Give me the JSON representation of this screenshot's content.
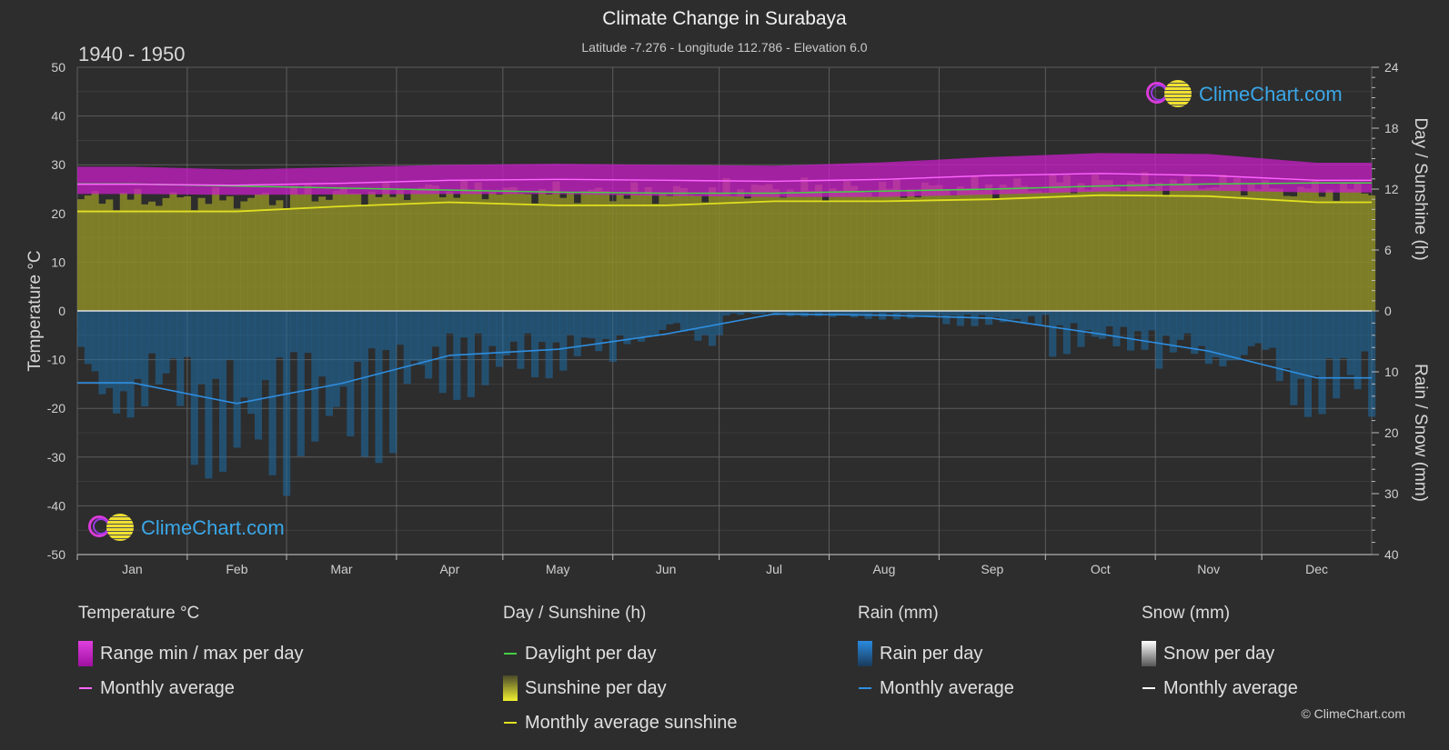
{
  "header": {
    "title": "Climate Change in Surabaya",
    "subtitle": "Latitude -7.276 - Longitude 112.786 - Elevation 6.0",
    "period": "1940 - 1950"
  },
  "brand": {
    "name": "ClimeChart.com"
  },
  "copyright": "© ClimeChart.com",
  "colors": {
    "background": "#2d2d2d",
    "temp_range": "#c81ec8",
    "temp_avg": "#ff66ff",
    "daylight": "#44d044",
    "sunshine_fill": "#8c8c28",
    "sunshine_avg": "#e0e020",
    "rain_fill": "#1e6ea8",
    "rain_avg": "#2e8ee0",
    "snow_avg": "#ffffff",
    "grid": "#606060"
  },
  "chart_data": {
    "type": "line",
    "months": [
      "Jan",
      "Feb",
      "Mar",
      "Apr",
      "May",
      "Jun",
      "Jul",
      "Aug",
      "Sep",
      "Oct",
      "Nov",
      "Dec"
    ],
    "left_axis": {
      "title": "Temperature °C",
      "ticks": [
        "50",
        "40",
        "30",
        "20",
        "10",
        "0",
        "-10",
        "-20",
        "-30",
        "-40",
        "-50"
      ],
      "range": [
        -50,
        50
      ]
    },
    "right_axis_top": {
      "title": "Day / Sunshine (h)",
      "ticks": [
        "24",
        "18",
        "12",
        "6",
        "0"
      ],
      "range": [
        0,
        24
      ]
    },
    "right_axis_bottom": {
      "title": "Rain / Snow (mm)",
      "ticks": [
        "0",
        "10",
        "20",
        "30",
        "40"
      ],
      "range": [
        0,
        40
      ]
    },
    "series": [
      {
        "name": "Temperature range min / max per day",
        "unit": "°C",
        "min": [
          24.0,
          23.8,
          23.9,
          24.0,
          24.0,
          23.6,
          23.4,
          23.4,
          23.9,
          24.5,
          24.7,
          24.3
        ],
        "max": [
          29.6,
          29.0,
          29.5,
          30.0,
          30.2,
          30.0,
          29.8,
          30.5,
          31.6,
          32.4,
          32.2,
          30.4
        ]
      },
      {
        "name": "Temperature monthly average",
        "unit": "°C",
        "values": [
          26.0,
          25.8,
          26.2,
          26.8,
          27.0,
          26.8,
          26.6,
          27.0,
          27.8,
          28.2,
          27.8,
          26.8
        ]
      },
      {
        "name": "Daylight per day",
        "unit": "h",
        "values": [
          12.5,
          12.3,
          12.1,
          11.9,
          11.7,
          11.6,
          11.6,
          11.8,
          12.0,
          12.3,
          12.5,
          12.6
        ]
      },
      {
        "name": "Monthly average sunshine",
        "unit": "h",
        "values": [
          9.8,
          9.8,
          10.3,
          10.7,
          10.4,
          10.4,
          10.8,
          10.8,
          11.0,
          11.4,
          11.3,
          10.7
        ]
      },
      {
        "name": "Rain monthly average",
        "unit": "mm",
        "values": [
          11.8,
          15.2,
          11.9,
          7.3,
          6.3,
          3.8,
          0.5,
          0.7,
          1.2,
          3.8,
          6.6,
          11.0
        ]
      },
      {
        "name": "Snow monthly average",
        "unit": "mm",
        "values": [
          0,
          0,
          0,
          0,
          0,
          0,
          0,
          0,
          0,
          0,
          0,
          0
        ]
      }
    ],
    "grid": true
  },
  "legend": {
    "groups": [
      {
        "title": "Temperature °C",
        "items": [
          {
            "label": "Range min / max per day",
            "swatch": "box",
            "color": "#d21ed2"
          },
          {
            "label": "Monthly average",
            "swatch": "line",
            "color": "#ff66ff"
          }
        ]
      },
      {
        "title": "Day / Sunshine (h)",
        "items": [
          {
            "label": "Daylight per day",
            "swatch": "line",
            "color": "#44d044"
          },
          {
            "label": "Sunshine per day",
            "swatch": "box",
            "color": "#e8e830"
          },
          {
            "label": "Monthly average sunshine",
            "swatch": "line",
            "color": "#e0e020"
          }
        ]
      },
      {
        "title": "Rain (mm)",
        "items": [
          {
            "label": "Rain per day",
            "swatch": "box",
            "color": "#2a8ae0"
          },
          {
            "label": "Monthly average",
            "swatch": "line",
            "color": "#2e8ee0"
          }
        ]
      },
      {
        "title": "Snow (mm)",
        "items": [
          {
            "label": "Snow per day",
            "swatch": "box",
            "color": "#dddddd"
          },
          {
            "label": "Monthly average",
            "swatch": "line",
            "color": "#ffffff"
          }
        ]
      }
    ]
  }
}
